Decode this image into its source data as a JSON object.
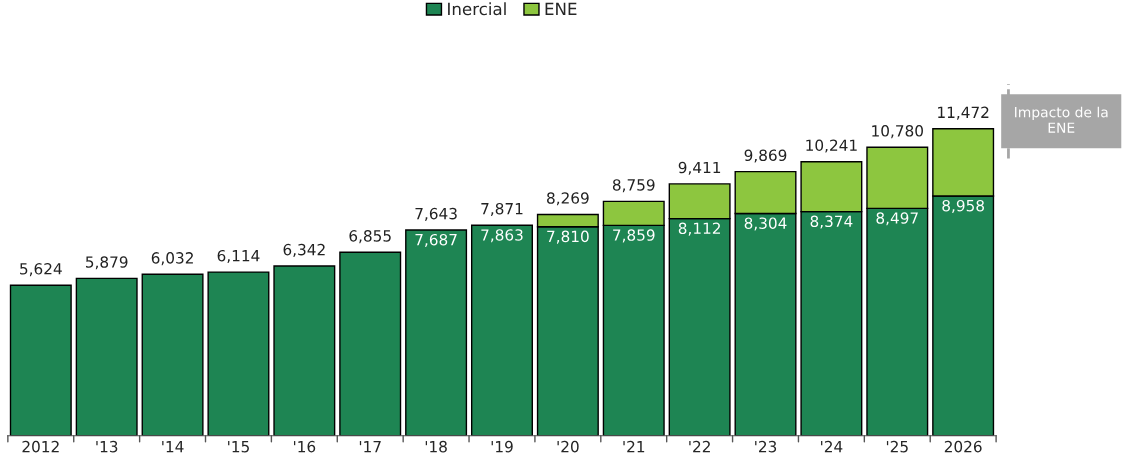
{
  "chart_data": {
    "type": "bar",
    "stacked": true,
    "categories": [
      "2012",
      "'13",
      "'14",
      "'15",
      "'16",
      "'17",
      "'18",
      "'19",
      "'20",
      "'21",
      "'22",
      "'23",
      "'24",
      "'25",
      "2026"
    ],
    "series": [
      {
        "name": "Inercial",
        "color": "#1e8553",
        "values": [
          5624,
          5879,
          6032,
          6114,
          6342,
          6855,
          7687,
          7863,
          7810,
          7859,
          8112,
          8304,
          8374,
          8497,
          8958
        ],
        "value_labels": [
          null,
          null,
          null,
          null,
          null,
          null,
          "7,687",
          "7,863",
          "7,810",
          "7,859",
          "8,112",
          "8,304",
          "8,374",
          "8,497",
          "8,958"
        ]
      },
      {
        "name": "ENE",
        "color": "#8dc63f",
        "values": [
          null,
          null,
          null,
          null,
          null,
          null,
          null,
          null,
          459,
          900,
          1299,
          1565,
          1867,
          2283,
          2514
        ]
      }
    ],
    "totals": [
      "5,624",
      "5,879",
      "6,032",
      "6,114",
      "6,342",
      "6,855",
      null,
      null,
      "8,269",
      "8,759",
      "9,411",
      "9,869",
      "10,241",
      "10,780",
      "11,472"
    ],
    "annotations": [
      "Impacto de la ENE",
      {
        "text": "7,643",
        "x": "'18",
        "y": 7643
      },
      {
        "text": "7,871",
        "x": "'19",
        "y": 7871
      }
    ],
    "legend": "top",
    "grid": false
  }
}
